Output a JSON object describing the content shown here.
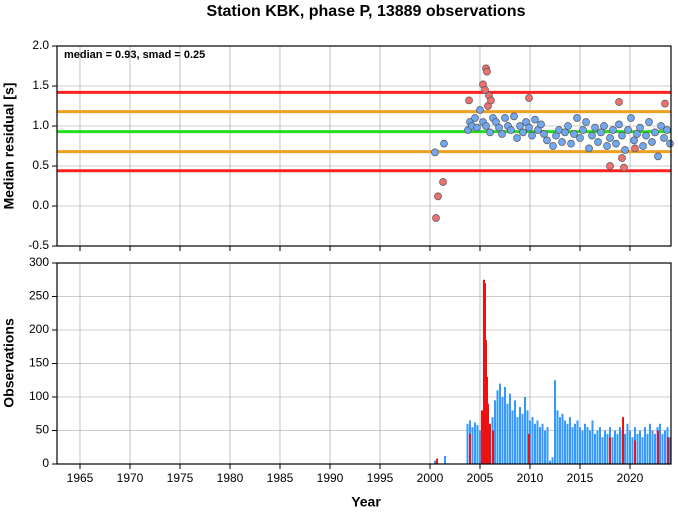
{
  "chart_data": [
    {
      "type": "scatter",
      "title": "Station KBK, phase P, 13889 observations",
      "ylabel": "Median residual [s]",
      "annotation": "median = 0.93, smad = 0.25",
      "xlim": [
        1962.7,
        2024.1
      ],
      "xticks": [
        1965,
        1970,
        1975,
        1980,
        1985,
        1990,
        1995,
        2000,
        2005,
        2010,
        2015,
        2020
      ],
      "xtick_labels": false,
      "ylim": [
        -0.5,
        2.0
      ],
      "yticks": [
        {
          "value": -0.5,
          "label": "-0.5"
        },
        {
          "value": 0,
          "label": "0.0"
        },
        {
          "value": 0.5,
          "label": "0.5"
        },
        {
          "value": 1,
          "label": "1.0"
        },
        {
          "value": 1.5,
          "label": "1.5"
        },
        {
          "value": 2,
          "label": "2.0"
        }
      ],
      "grid": true,
      "hlines": [
        {
          "value": 1.42,
          "color": "#ff2020"
        },
        {
          "value": 1.18,
          "color": "#f0a020"
        },
        {
          "value": 0.93,
          "color": "#20e020"
        },
        {
          "value": 0.68,
          "color": "#f0a020"
        },
        {
          "value": 0.44,
          "color": "#ff2020"
        }
      ],
      "series": [
        {
          "color": "#6fa8f0",
          "x": [
            2000.5,
            2001.4,
            2003.8,
            2004,
            2004.2,
            2004.5,
            2004.7,
            2005,
            2005.3,
            2005.6,
            2006,
            2006.3,
            2006.6,
            2006.9,
            2007.2,
            2007.5,
            2007.8,
            2008.1,
            2008.4,
            2008.7,
            2009,
            2009.3,
            2009.6,
            2009.9,
            2010.2,
            2010.5,
            2010.8,
            2011.1,
            2011.4,
            2011.7,
            2012.3,
            2012.6,
            2012.9,
            2013.2,
            2013.5,
            2013.8,
            2014.1,
            2014.4,
            2014.7,
            2015,
            2015.3,
            2015.6,
            2015.9,
            2016.2,
            2016.5,
            2016.8,
            2017.1,
            2017.4,
            2017.7,
            2018,
            2018.3,
            2018.6,
            2018.9,
            2019.2,
            2019.5,
            2019.8,
            2020.1,
            2020.4,
            2020.7,
            2021,
            2021.3,
            2021.6,
            2021.9,
            2022.2,
            2022.5,
            2022.8,
            2023.1,
            2023.4,
            2023.7,
            2024
          ],
          "values": [
            0.67,
            0.78,
            0.95,
            1.05,
            1.0,
            1.1,
            0.98,
            1.2,
            1.05,
            1.0,
            0.92,
            1.1,
            1.05,
            0.98,
            0.9,
            1.1,
            1.0,
            0.95,
            1.12,
            0.85,
            1.0,
            0.92,
            1.05,
            0.98,
            0.88,
            1.08,
            0.95,
            1.02,
            0.9,
            0.82,
            0.75,
            0.88,
            0.95,
            0.8,
            0.92,
            1.0,
            0.78,
            0.9,
            1.1,
            0.85,
            0.95,
            1.05,
            0.72,
            0.88,
            0.98,
            0.8,
            0.92,
            1.0,
            0.75,
            0.85,
            0.95,
            0.78,
            1.02,
            0.88,
            0.7,
            0.95,
            1.1,
            0.82,
            0.9,
            0.98,
            0.75,
            0.88,
            1.05,
            0.8,
            0.92,
            0.62,
            1.0,
            0.85,
            0.95,
            0.78
          ]
        },
        {
          "color": "#f07070",
          "x": [
            2000.6,
            2000.8,
            2001.3,
            2003.9,
            2005.3,
            2005.5,
            2005.6,
            2005.7,
            2005.8,
            2005.9,
            2006.1,
            2009.9,
            2018,
            2018.9,
            2019.2,
            2019.4,
            2020.5,
            2023.5
          ],
          "values": [
            -0.15,
            0.12,
            0.3,
            1.32,
            1.52,
            1.45,
            1.72,
            1.68,
            1.25,
            1.38,
            1.32,
            1.35,
            0.5,
            1.3,
            0.6,
            0.48,
            0.72,
            1.28
          ]
        }
      ]
    },
    {
      "type": "bar",
      "xlabel": "Year",
      "ylabel": "Observations",
      "xlim": [
        1962.7,
        2024.1
      ],
      "xticks": [
        1965,
        1970,
        1975,
        1980,
        1985,
        1990,
        1995,
        2000,
        2005,
        2010,
        2015,
        2020
      ],
      "xtick_labels": true,
      "ylim": [
        0,
        300
      ],
      "yticks": [
        0,
        50,
        100,
        150,
        200,
        250,
        300
      ],
      "grid": true,
      "series": [
        {
          "color": "#3399ff",
          "x": [
            2000.5,
            2001.5,
            2003.75,
            2004,
            2004.25,
            2004.5,
            2004.75,
            2005,
            2005.25,
            2005.5,
            2005.75,
            2006,
            2006.25,
            2006.5,
            2006.75,
            2007,
            2007.25,
            2007.5,
            2007.75,
            2008,
            2008.25,
            2008.5,
            2008.75,
            2009,
            2009.25,
            2009.5,
            2009.75,
            2010,
            2010.25,
            2010.5,
            2010.75,
            2011,
            2011.25,
            2011.5,
            2011.75,
            2012,
            2012.25,
            2012.5,
            2012.75,
            2013,
            2013.25,
            2013.5,
            2013.75,
            2014,
            2014.25,
            2014.5,
            2014.75,
            2015,
            2015.25,
            2015.5,
            2015.75,
            2016,
            2016.25,
            2016.5,
            2016.75,
            2017,
            2017.25,
            2017.5,
            2017.75,
            2018,
            2018.25,
            2018.5,
            2018.75,
            2019,
            2019.25,
            2019.5,
            2019.75,
            2020,
            2020.25,
            2020.5,
            2020.75,
            2021,
            2021.25,
            2021.5,
            2021.75,
            2022,
            2022.25,
            2022.5,
            2022.75,
            2023,
            2023.25,
            2023.5,
            2023.75,
            2024
          ],
          "values": [
            5,
            12,
            60,
            65,
            55,
            62,
            58,
            50,
            45,
            40,
            55,
            60,
            70,
            95,
            110,
            120,
            100,
            115,
            90,
            105,
            80,
            95,
            70,
            85,
            75,
            100,
            80,
            65,
            70,
            60,
            65,
            55,
            60,
            50,
            55,
            5,
            10,
            125,
            80,
            70,
            75,
            65,
            60,
            70,
            55,
            60,
            65,
            55,
            50,
            60,
            55,
            50,
            65,
            45,
            50,
            55,
            40,
            50,
            45,
            55,
            40,
            50,
            45,
            55,
            50,
            45,
            60,
            50,
            40,
            55,
            45,
            50,
            40,
            55,
            45,
            60,
            50,
            45,
            55,
            60,
            45,
            50,
            55,
            40
          ]
        },
        {
          "color": "#ee1111",
          "x": [
            2000.7,
            2004,
            2005.2,
            2005.4,
            2005.5,
            2005.6,
            2005.7,
            2005.8,
            2006,
            2006.3,
            2009.9,
            2018,
            2019.3,
            2020.5,
            2022.8,
            2023.8
          ],
          "values": [
            8,
            45,
            80,
            275,
            270,
            185,
            130,
            90,
            60,
            50,
            45,
            40,
            70,
            35,
            50,
            40
          ]
        }
      ]
    }
  ]
}
